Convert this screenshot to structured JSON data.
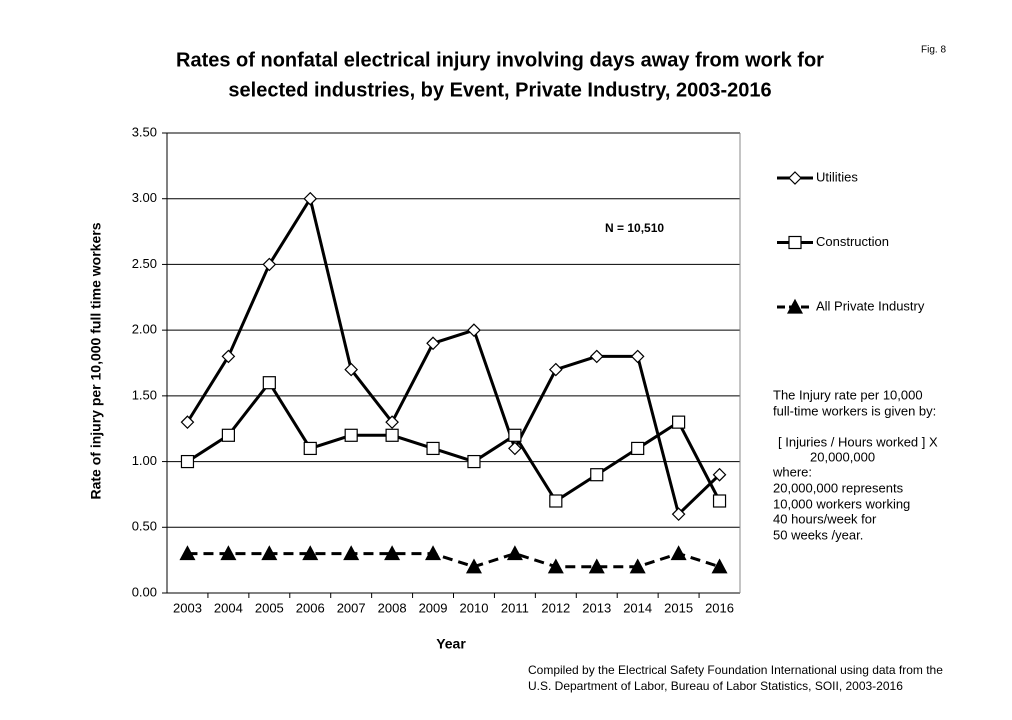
{
  "chart_data": {
    "type": "line",
    "title": [
      "Rates of nonfatal electrical injury involving days away from work for",
      "selected industries, by Event, Private Industry, 2003-2016"
    ],
    "figure_label": "Fig. 8",
    "annotation": "N = 10,510",
    "note": [
      "The Injury rate per 10,000",
      "full-time workers is given by:",
      "[ Injuries / Hours worked ] X",
      "20,000,000",
      "where:",
      "20,000,000  represents",
      "10,000 workers working",
      "40 hours/week for",
      "50 weeks /year."
    ],
    "source": [
      "Compiled by the Electrical Safety Foundation International using data from the",
      "U.S. Department of Labor, Bureau of Labor Statistics, SOII, 2003-2016"
    ],
    "x_label": "Year",
    "y_label": "Rate of injury per 10,000 full time workers",
    "categories": [
      "2003",
      "2004",
      "2005",
      "2006",
      "2007",
      "2008",
      "2009",
      "2010",
      "2011",
      "2012",
      "2013",
      "2014",
      "2015",
      "2016"
    ],
    "series": [
      {
        "name": "Utilities",
        "color": "#000000",
        "marker": "diamond",
        "dashed": false,
        "values": [
          1.3,
          1.8,
          2.5,
          3.0,
          1.7,
          1.3,
          1.9,
          2.0,
          1.1,
          1.7,
          1.8,
          1.8,
          0.6,
          0.9
        ]
      },
      {
        "name": "Construction",
        "color": "#000000",
        "marker": "square",
        "dashed": false,
        "values": [
          1.0,
          1.2,
          1.6,
          1.1,
          1.2,
          1.2,
          1.1,
          1.0,
          1.2,
          0.7,
          0.9,
          1.1,
          1.3,
          0.7
        ]
      },
      {
        "name": "All Private Industry",
        "color": "#000000",
        "marker": "triangle",
        "dashed": true,
        "values": [
          0.3,
          0.3,
          0.3,
          0.3,
          0.3,
          0.3,
          0.3,
          0.2,
          0.3,
          0.2,
          0.2,
          0.2,
          0.3,
          0.2
        ]
      }
    ],
    "ylim": [
      0,
      3.5
    ],
    "yticks": [
      {
        "value": 0,
        "label": "0.00"
      },
      {
        "value": 0.5,
        "label": "0.50"
      },
      {
        "value": 1,
        "label": "1.00"
      },
      {
        "value": 1.5,
        "label": "1.50"
      },
      {
        "value": 2,
        "label": "2.00"
      },
      {
        "value": 2.5,
        "label": "2.50"
      },
      {
        "value": 3,
        "label": "3.00"
      },
      {
        "value": 3.5,
        "label": "3.50"
      }
    ],
    "grid": true,
    "legend": "right"
  }
}
